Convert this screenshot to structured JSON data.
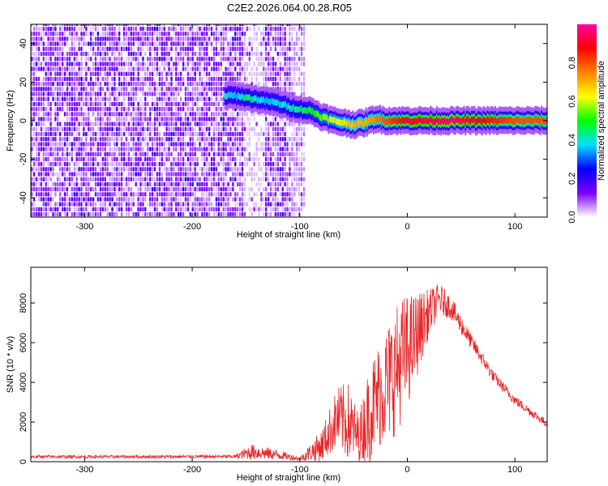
{
  "title": "C2E2.2026.064.00.28.R05",
  "chart_data": [
    {
      "type": "heatmap",
      "xlabel": "Height of straight line (km)",
      "ylabel": "Frequency (Hz)",
      "xlim": [
        -350,
        130
      ],
      "ylim": [
        -50,
        50
      ],
      "x_ticks": [
        -300,
        -200,
        -100,
        0,
        100
      ],
      "y_ticks": [
        -40,
        -20,
        0,
        20,
        40
      ],
      "colorbar": {
        "label": "Normalized spectral amplitude",
        "range": [
          0,
          1
        ],
        "ticks": [
          0.0,
          0.2,
          0.4,
          0.6,
          0.8
        ],
        "tick_labels": [
          "0.0",
          "0.2",
          "0.4",
          "0.6",
          "0.8"
        ],
        "colors": [
          "#ffffff",
          "#7a00ff",
          "#0000ff",
          "#00e0ff",
          "#00ff00",
          "#ffff00",
          "#ff8000",
          "#ff0000",
          "#ff00a0"
        ]
      },
      "noise_region": {
        "x": [
          -350,
          -95
        ],
        "amplitude": 0.12
      },
      "noise_gaps": [
        [
          -153,
          -133
        ]
      ],
      "signal_track": [
        {
          "x": -170,
          "freq": 13,
          "amp": 0.4
        },
        {
          "x": -160,
          "freq": 13,
          "amp": 0.35
        },
        {
          "x": -150,
          "freq": 12,
          "amp": 0.45
        },
        {
          "x": -140,
          "freq": 11,
          "amp": 0.4
        },
        {
          "x": -130,
          "freq": 10,
          "amp": 0.35
        },
        {
          "x": -120,
          "freq": 9,
          "amp": 0.4
        },
        {
          "x": -110,
          "freq": 7,
          "amp": 0.4
        },
        {
          "x": -100,
          "freq": 6,
          "amp": 0.45
        },
        {
          "x": -90,
          "freq": 5,
          "amp": 0.5
        },
        {
          "x": -80,
          "freq": 2,
          "amp": 0.55
        },
        {
          "x": -70,
          "freq": 0,
          "amp": 0.6
        },
        {
          "x": -60,
          "freq": -1,
          "amp": 0.65
        },
        {
          "x": -50,
          "freq": -2,
          "amp": 0.7
        },
        {
          "x": -40,
          "freq": -1,
          "amp": 0.7
        },
        {
          "x": -30,
          "freq": 1,
          "amp": 0.75
        },
        {
          "x": -20,
          "freq": 0,
          "amp": 0.8
        },
        {
          "x": -10,
          "freq": 0,
          "amp": 0.85
        },
        {
          "x": 0,
          "freq": 0,
          "amp": 0.9
        },
        {
          "x": 20,
          "freq": 0,
          "amp": 0.92
        },
        {
          "x": 40,
          "freq": 0,
          "amp": 0.95
        },
        {
          "x": 60,
          "freq": 0,
          "amp": 0.9
        },
        {
          "x": 80,
          "freq": 0,
          "amp": 0.85
        },
        {
          "x": 100,
          "freq": 0,
          "amp": 0.8
        },
        {
          "x": 130,
          "freq": 0,
          "amp": 0.8
        }
      ]
    },
    {
      "type": "line",
      "xlabel": "Height of straight line (km)",
      "ylabel": "SNR (10 * v/v)",
      "xlim": [
        -350,
        130
      ],
      "ylim": [
        0,
        9800
      ],
      "x_ticks": [
        -300,
        -200,
        -100,
        0,
        100
      ],
      "y_ticks": [
        0,
        2000,
        4000,
        6000,
        8000
      ],
      "series": [
        {
          "color": "#e8272a",
          "envelope": [
            {
              "x": -350,
              "mean": 250,
              "spread": 80
            },
            {
              "x": -250,
              "mean": 250,
              "spread": 80
            },
            {
              "x": -160,
              "mean": 260,
              "spread": 90
            },
            {
              "x": -145,
              "mean": 500,
              "spread": 400
            },
            {
              "x": -120,
              "mean": 350,
              "spread": 250
            },
            {
              "x": -100,
              "mean": 150,
              "spread": 100
            },
            {
              "x": -80,
              "mean": 800,
              "spread": 800
            },
            {
              "x": -65,
              "mean": 2200,
              "spread": 1600
            },
            {
              "x": -55,
              "mean": 2000,
              "spread": 2000
            },
            {
              "x": -45,
              "mean": 1200,
              "spread": 1200
            },
            {
              "x": -35,
              "mean": 2500,
              "spread": 2500
            },
            {
              "x": -25,
              "mean": 3500,
              "spread": 2800
            },
            {
              "x": -15,
              "mean": 4200,
              "spread": 3200
            },
            {
              "x": -5,
              "mean": 5200,
              "spread": 3200
            },
            {
              "x": 5,
              "mean": 6000,
              "spread": 2500
            },
            {
              "x": 20,
              "mean": 7500,
              "spread": 1200
            },
            {
              "x": 30,
              "mean": 8200,
              "spread": 800
            },
            {
              "x": 40,
              "mean": 7800,
              "spread": 600
            },
            {
              "x": 60,
              "mean": 6000,
              "spread": 400
            },
            {
              "x": 80,
              "mean": 4300,
              "spread": 300
            },
            {
              "x": 100,
              "mean": 3100,
              "spread": 250
            },
            {
              "x": 130,
              "mean": 1900,
              "spread": 200
            }
          ]
        }
      ]
    }
  ]
}
